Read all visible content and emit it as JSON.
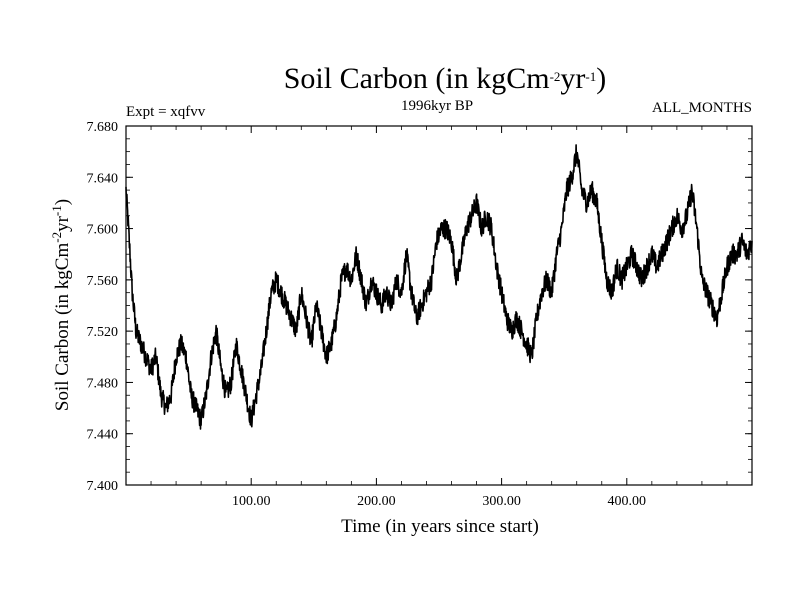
{
  "chart_data": {
    "type": "line",
    "title": "Soil Carbon (in kgCm-2yr-1)",
    "title_parts": {
      "main": "Soil Carbon (in kgCm",
      "exp1": "-2",
      "mid": "yr",
      "exp2": "-1",
      "end": ")"
    },
    "subtitle_left": "Expt = xqfvv",
    "subtitle_center": "1996kyr BP",
    "subtitle_right": "ALL_MONTHS",
    "xlabel": "Time (in years since start)",
    "ylabel": "Soil Carbon (in kgCm-2yr-1)",
    "ylabel_parts": {
      "main": "Soil Carbon (in kgCm",
      "exp1": "-2",
      "mid": "yr",
      "exp2": "-1",
      "end": ")"
    },
    "xlim": [
      0,
      500
    ],
    "ylim": [
      7.4,
      7.68
    ],
    "xticks": [
      100,
      200,
      300,
      400
    ],
    "xtick_labels": [
      "100.00",
      "200.00",
      "300.00",
      "400.00"
    ],
    "yticks": [
      7.4,
      7.44,
      7.48,
      7.52,
      7.56,
      7.6,
      7.64,
      7.68
    ],
    "ytick_labels": [
      "7.400",
      "7.440",
      "7.480",
      "7.520",
      "7.560",
      "7.600",
      "7.640",
      "7.680"
    ],
    "series": [
      {
        "name": "Soil Carbon",
        "color": "#000000",
        "x": [
          0,
          2,
          5,
          8,
          12,
          16,
          20,
          24,
          28,
          32,
          36,
          40,
          44,
          48,
          52,
          56,
          60,
          64,
          68,
          72,
          76,
          80,
          84,
          88,
          92,
          96,
          100,
          104,
          108,
          112,
          116,
          120,
          124,
          128,
          132,
          136,
          140,
          144,
          148,
          152,
          156,
          160,
          164,
          168,
          172,
          176,
          180,
          184,
          188,
          192,
          196,
          200,
          204,
          208,
          212,
          216,
          220,
          224,
          228,
          232,
          236,
          240,
          244,
          248,
          252,
          256,
          260,
          264,
          268,
          272,
          276,
          280,
          284,
          288,
          292,
          296,
          300,
          304,
          308,
          312,
          316,
          320,
          324,
          328,
          332,
          336,
          340,
          344,
          348,
          352,
          356,
          360,
          364,
          368,
          372,
          376,
          380,
          384,
          388,
          392,
          396,
          400,
          404,
          408,
          412,
          416,
          420,
          424,
          428,
          432,
          436,
          440,
          444,
          448,
          452,
          456,
          460,
          464,
          468,
          472,
          476,
          480,
          484,
          488,
          492,
          496,
          500
        ],
        "values": [
          7.63,
          7.6,
          7.55,
          7.52,
          7.51,
          7.5,
          7.49,
          7.5,
          7.47,
          7.46,
          7.47,
          7.5,
          7.51,
          7.5,
          7.47,
          7.46,
          7.45,
          7.47,
          7.5,
          7.52,
          7.49,
          7.47,
          7.48,
          7.51,
          7.49,
          7.47,
          7.45,
          7.47,
          7.49,
          7.52,
          7.55,
          7.56,
          7.55,
          7.54,
          7.53,
          7.52,
          7.55,
          7.53,
          7.51,
          7.54,
          7.52,
          7.5,
          7.51,
          7.53,
          7.56,
          7.57,
          7.56,
          7.58,
          7.56,
          7.54,
          7.56,
          7.55,
          7.54,
          7.55,
          7.54,
          7.56,
          7.55,
          7.58,
          7.55,
          7.53,
          7.54,
          7.55,
          7.56,
          7.59,
          7.6,
          7.6,
          7.59,
          7.56,
          7.58,
          7.6,
          7.61,
          7.62,
          7.6,
          7.61,
          7.6,
          7.57,
          7.55,
          7.53,
          7.52,
          7.53,
          7.52,
          7.51,
          7.5,
          7.53,
          7.55,
          7.56,
          7.55,
          7.58,
          7.6,
          7.63,
          7.64,
          7.66,
          7.63,
          7.62,
          7.63,
          7.62,
          7.59,
          7.56,
          7.55,
          7.57,
          7.56,
          7.57,
          7.58,
          7.57,
          7.56,
          7.57,
          7.58,
          7.57,
          7.58,
          7.59,
          7.6,
          7.61,
          7.6,
          7.61,
          7.63,
          7.6,
          7.56,
          7.55,
          7.54,
          7.53,
          7.55,
          7.57,
          7.58,
          7.58,
          7.59,
          7.58,
          7.59
        ]
      }
    ],
    "grid": false
  }
}
